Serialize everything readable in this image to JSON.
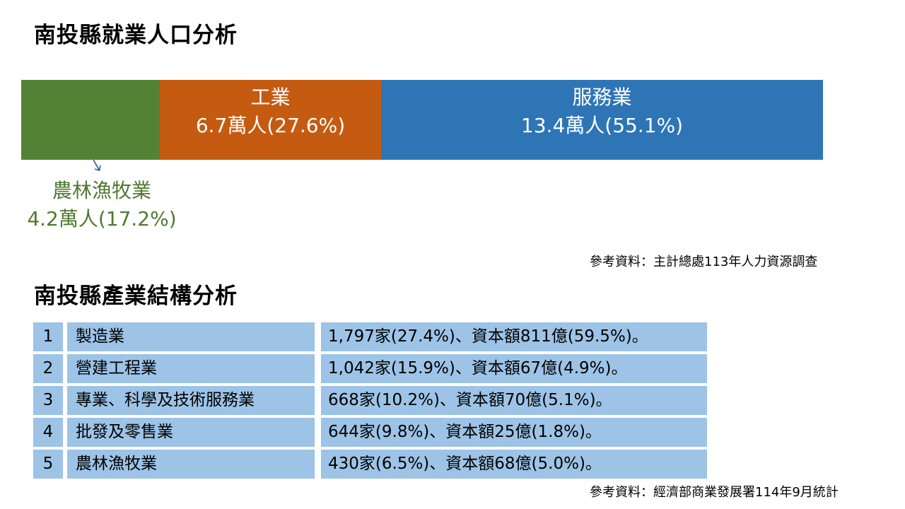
{
  "employment": {
    "title": "南投縣就業人口分析",
    "source": "參考資料：主計總處113年人力資源調查",
    "chart_data": {
      "type": "bar",
      "stacked": true,
      "orientation": "horizontal",
      "unit": "萬人",
      "categories": [
        "農林漁牧業",
        "工業",
        "服務業"
      ],
      "values": [
        4.2,
        6.7,
        13.4
      ],
      "percents": [
        17.2,
        27.6,
        55.1
      ],
      "colors": [
        "#548235",
        "#c55a11",
        "#2e75b6"
      ]
    },
    "segments": [
      {
        "name": "農林漁牧業",
        "value_text": "4.2萬人(17.2%)"
      },
      {
        "name": "工業",
        "value_text": "6.7萬人(27.6%)"
      },
      {
        "name": "服務業",
        "value_text": "13.4萬人(55.1%)"
      }
    ]
  },
  "industry": {
    "title": "南投縣產業結構分析",
    "source": "參考資料：經濟部商業發展署114年9月統計",
    "rows": [
      {
        "rank": "1",
        "name": "製造業",
        "stat": "1,797家(27.4%)、資本額811億(59.5%)。"
      },
      {
        "rank": "2",
        "name": "營建工程業",
        "stat": "1,042家(15.9%)、資本額67億(4.9%)。"
      },
      {
        "rank": "3",
        "name": "專業、科學及技術服務業",
        "stat": "668家(10.2%)、資本額70億(5.1%)。"
      },
      {
        "rank": "4",
        "name": "批發及零售業",
        "stat": "644家(9.8%)、資本額25億(1.8%)。"
      },
      {
        "rank": "5",
        "name": "農林漁牧業",
        "stat": "430家(6.5%)、資本額68億(5.0%)。"
      }
    ]
  }
}
